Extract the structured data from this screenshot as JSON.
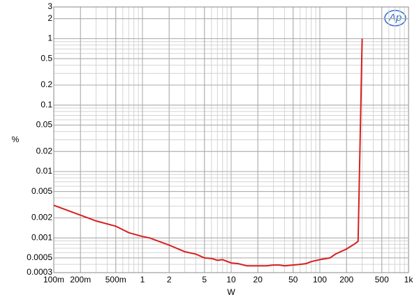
{
  "chart_data": {
    "type": "line",
    "logo": "Ap",
    "xlabel": "W",
    "ylabel": "%",
    "xscale": "log",
    "yscale": "log",
    "grid": true,
    "minor_grid": true,
    "xlim": [
      0.1,
      1000
    ],
    "ylim": [
      0.0003,
      3
    ],
    "xticks": [
      {
        "value": 0.1,
        "label": "100m"
      },
      {
        "value": 0.2,
        "label": "200m"
      },
      {
        "value": 0.5,
        "label": "500m"
      },
      1,
      2,
      5,
      10,
      20,
      50,
      100,
      200,
      500,
      {
        "value": 1000,
        "label": "1k"
      }
    ],
    "yticks": [
      3,
      2,
      1,
      0.5,
      0.2,
      0.1,
      0.05,
      0.02,
      0.01,
      0.005,
      0.002,
      0.001,
      0.0005,
      0.0003
    ],
    "x": [
      0.1,
      0.2,
      0.3,
      0.5,
      0.7,
      1,
      1.2,
      2,
      3,
      4,
      5,
      6,
      7,
      8,
      10,
      12,
      15,
      20,
      25,
      30,
      35,
      40,
      50,
      60,
      70,
      80,
      100,
      130,
      150,
      200,
      250,
      270,
      300
    ],
    "series": [
      {
        "color": "#d81e1e",
        "values": [
          0.0031,
          0.0022,
          0.0018,
          0.0015,
          0.0012,
          0.00105,
          0.001,
          0.00078,
          0.00062,
          0.00057,
          0.0005,
          0.00049,
          0.00046,
          0.00047,
          0.00042,
          0.00041,
          0.00038,
          0.00038,
          0.00038,
          0.00039,
          0.00039,
          0.00038,
          0.00039,
          0.0004,
          0.00041,
          0.00044,
          0.00047,
          0.0005,
          0.00057,
          0.00068,
          0.00082,
          0.00089,
          1
        ]
      }
    ]
  }
}
